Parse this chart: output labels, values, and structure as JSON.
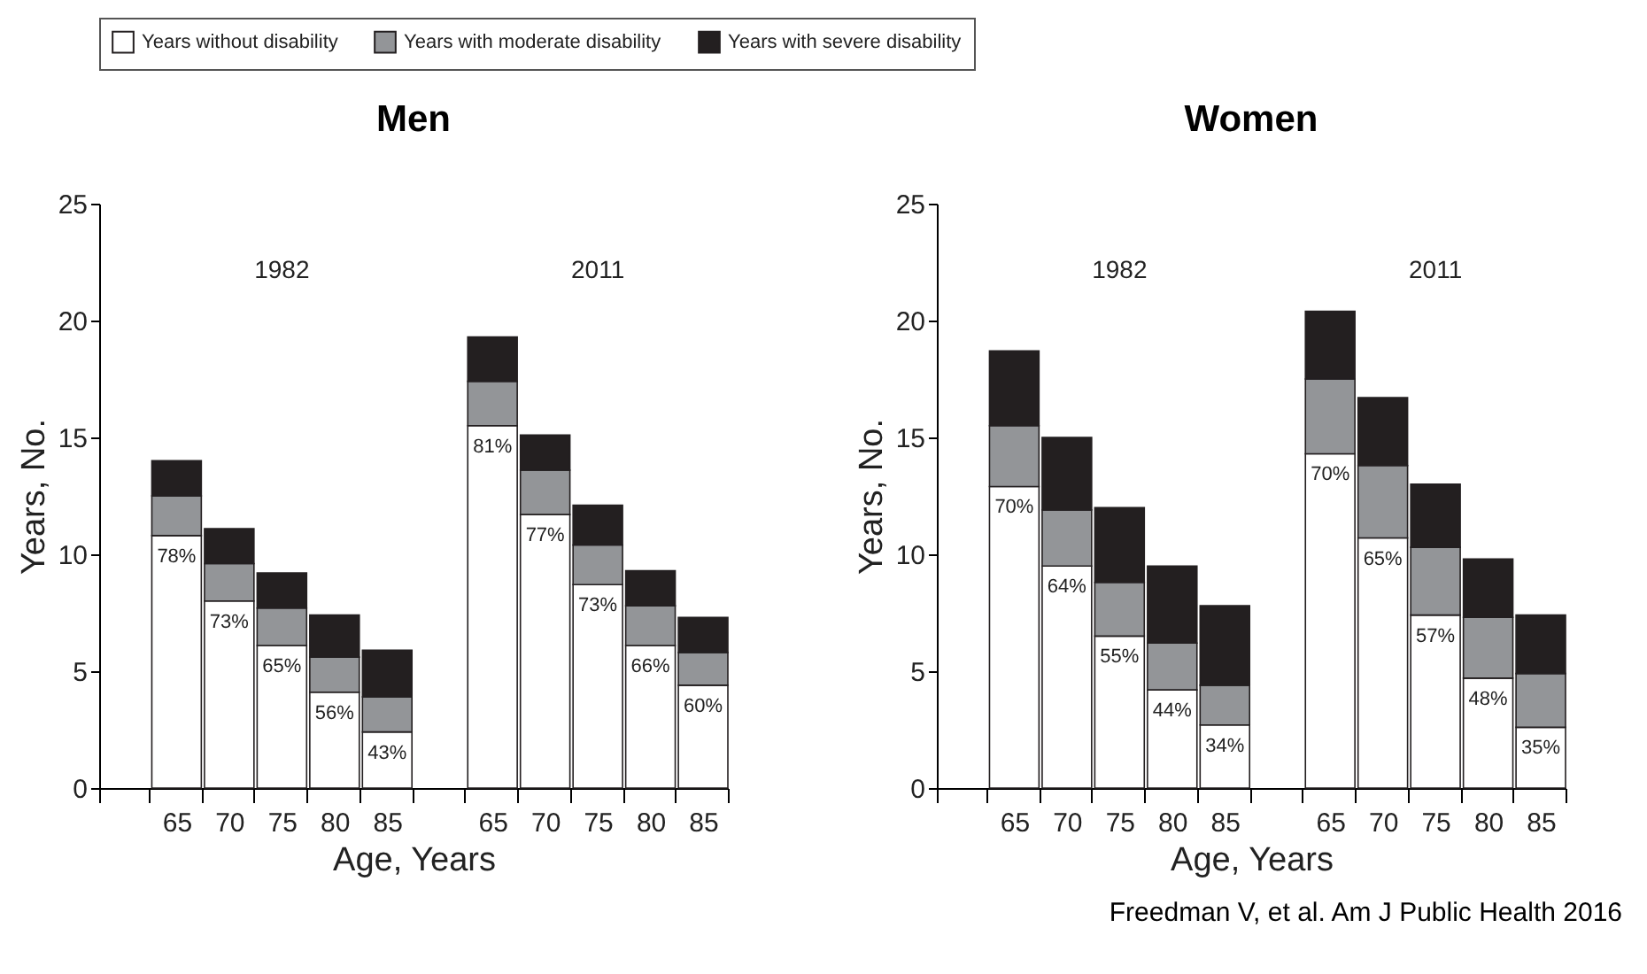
{
  "chart_data": [
    {
      "type": "bar",
      "title": "Men",
      "xlabel": "Age, Years",
      "ylabel": "Years, No.",
      "stacked": true,
      "legend": "top",
      "ylim": [
        0,
        25
      ],
      "yticks": [
        0,
        5,
        10,
        15,
        20,
        25
      ],
      "categories": [
        null,
        "65",
        "70",
        "75",
        "80",
        "85",
        null,
        "65",
        "70",
        "75",
        "80",
        "85"
      ],
      "annotations": [
        "1982",
        "2011",
        "78%",
        "73%",
        "65%",
        "56%",
        "43%",
        "81%",
        "77%",
        "73%",
        "66%",
        "60%"
      ],
      "series": [
        {
          "name": "Years without disability",
          "color": "#ffffff",
          "values": [
            null,
            10.8,
            8.0,
            6.1,
            4.1,
            2.4,
            null,
            15.5,
            11.7,
            8.7,
            6.1,
            4.4
          ]
        },
        {
          "name": "Years with moderate disability",
          "color": "#939598",
          "values": [
            null,
            1.7,
            1.6,
            1.6,
            1.5,
            1.5,
            null,
            1.9,
            1.9,
            1.7,
            1.7,
            1.4
          ]
        },
        {
          "name": "Years with severe disability",
          "color": "#231f20",
          "values": [
            null,
            1.5,
            1.5,
            1.5,
            1.8,
            2.0,
            null,
            1.9,
            1.5,
            1.7,
            1.5,
            1.5
          ]
        }
      ]
    },
    {
      "type": "bar",
      "title": "Women",
      "xlabel": "Age, Years",
      "ylabel": "Years, No.",
      "stacked": true,
      "legend": "top",
      "ylim": [
        0,
        25
      ],
      "yticks": [
        0,
        5,
        10,
        15,
        20,
        25
      ],
      "categories": [
        null,
        "65",
        "70",
        "75",
        "80",
        "85",
        null,
        "65",
        "70",
        "75",
        "80",
        "85"
      ],
      "annotations": [
        "1982",
        "2011",
        "70%",
        "64%",
        "55%",
        "44%",
        "34%",
        "70%",
        "65%",
        "57%",
        "48%",
        "35%",
        "Freedman V, et al. Am J Public Health 2016"
      ],
      "series": [
        {
          "name": "Years without disability",
          "color": "#ffffff",
          "values": [
            null,
            12.9,
            9.5,
            6.5,
            4.2,
            2.7,
            null,
            14.3,
            10.7,
            7.4,
            4.7,
            2.6
          ]
        },
        {
          "name": "Years with moderate disability",
          "color": "#939598",
          "values": [
            null,
            2.6,
            2.4,
            2.3,
            2.0,
            1.7,
            null,
            3.2,
            3.1,
            2.9,
            2.6,
            2.3
          ]
        },
        {
          "name": "Years with severe disability",
          "color": "#231f20",
          "values": [
            null,
            3.2,
            3.1,
            3.2,
            3.3,
            3.4,
            null,
            2.9,
            2.9,
            2.7,
            2.5,
            2.5
          ]
        }
      ]
    }
  ]
}
